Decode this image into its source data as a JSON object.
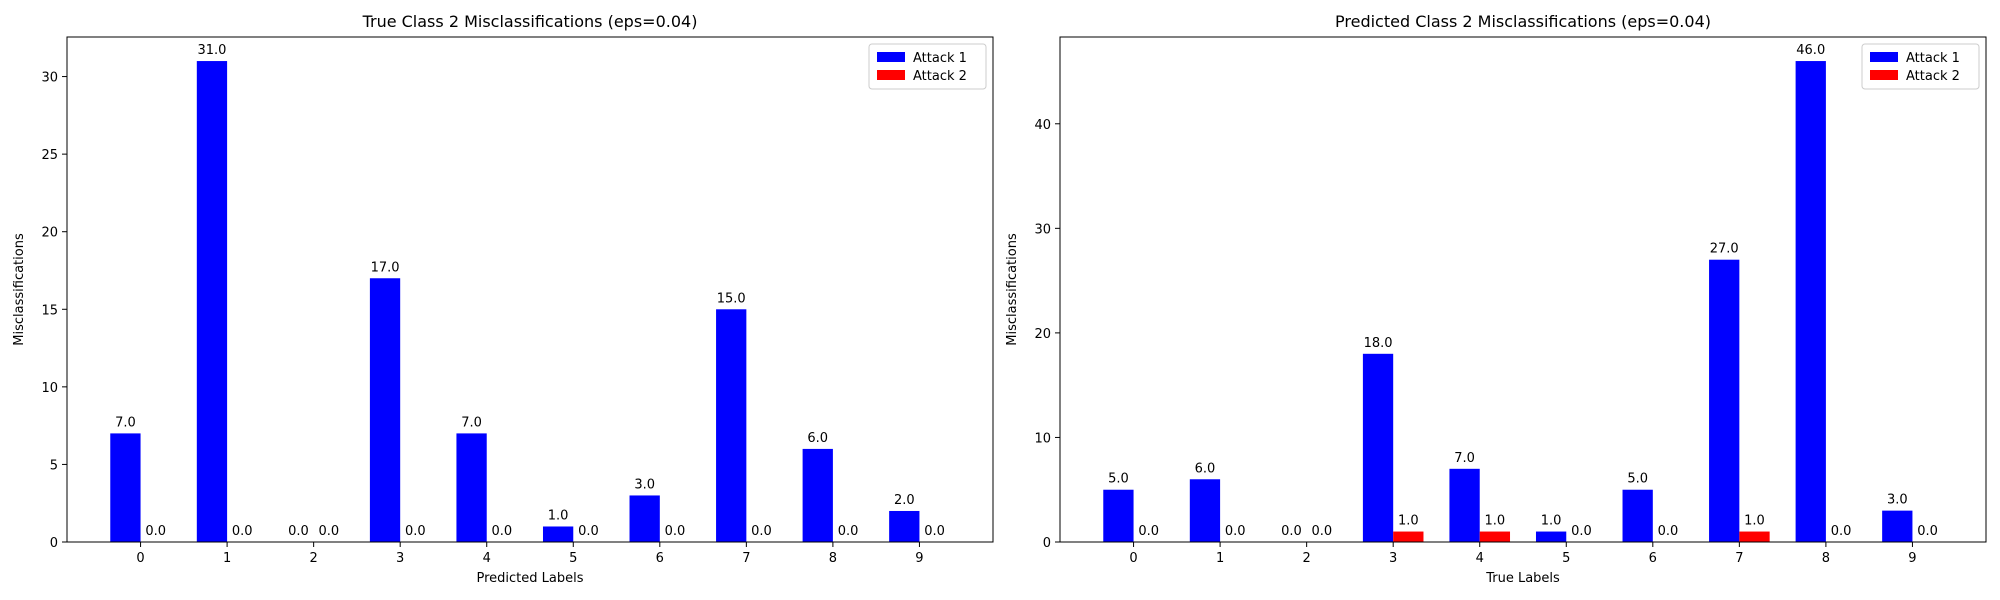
{
  "colors": {
    "attack1": "#0000ff",
    "attack2": "#ff0000"
  },
  "chart_data": [
    {
      "type": "bar",
      "title": "True Class 2 Misclassifications (eps=0.04)",
      "xlabel": "Predicted Labels",
      "ylabel": "Misclassifications",
      "categories": [
        "0",
        "1",
        "2",
        "3",
        "4",
        "5",
        "6",
        "7",
        "8",
        "9"
      ],
      "ylim": [
        0,
        32.55
      ],
      "yticks": [
        "0",
        "5",
        "10",
        "15",
        "20",
        "25",
        "30"
      ],
      "legend": "top-right",
      "grid": false,
      "series": [
        {
          "name": "Attack 1",
          "values": [
            7,
            31,
            0,
            17,
            7,
            1,
            3,
            15,
            6,
            2
          ],
          "labels": [
            "7.0",
            "31.0",
            "0.0",
            "17.0",
            "7.0",
            "1.0",
            "3.0",
            "15.0",
            "6.0",
            "2.0"
          ]
        },
        {
          "name": "Attack 2",
          "values": [
            0,
            0,
            0,
            0,
            0,
            0,
            0,
            0,
            0,
            0
          ],
          "labels": [
            "0.0",
            "0.0",
            "0.0",
            "0.0",
            "0.0",
            "0.0",
            "0.0",
            "0.0",
            "0.0",
            "0.0"
          ]
        }
      ]
    },
    {
      "type": "bar",
      "title": "Predicted Class 2 Misclassifications (eps=0.04)",
      "xlabel": "True Labels",
      "ylabel": "Misclassifications",
      "categories": [
        "0",
        "1",
        "2",
        "3",
        "4",
        "5",
        "6",
        "7",
        "8",
        "9"
      ],
      "ylim": [
        0,
        48.3
      ],
      "yticks": [
        "0",
        "10",
        "20",
        "30",
        "40"
      ],
      "legend": "top-right",
      "grid": false,
      "series": [
        {
          "name": "Attack 1",
          "values": [
            5,
            6,
            0,
            18,
            7,
            1,
            5,
            27,
            46,
            3
          ],
          "labels": [
            "5.0",
            "6.0",
            "0.0",
            "18.0",
            "7.0",
            "1.0",
            "5.0",
            "27.0",
            "46.0",
            "3.0"
          ]
        },
        {
          "name": "Attack 2",
          "values": [
            0,
            0,
            0,
            1,
            1,
            0,
            0,
            1,
            0,
            0
          ],
          "labels": [
            "0.0",
            "0.0",
            "0.0",
            "1.0",
            "1.0",
            "0.0",
            "0.0",
            "1.0",
            "0.0",
            "0.0"
          ]
        }
      ]
    }
  ]
}
